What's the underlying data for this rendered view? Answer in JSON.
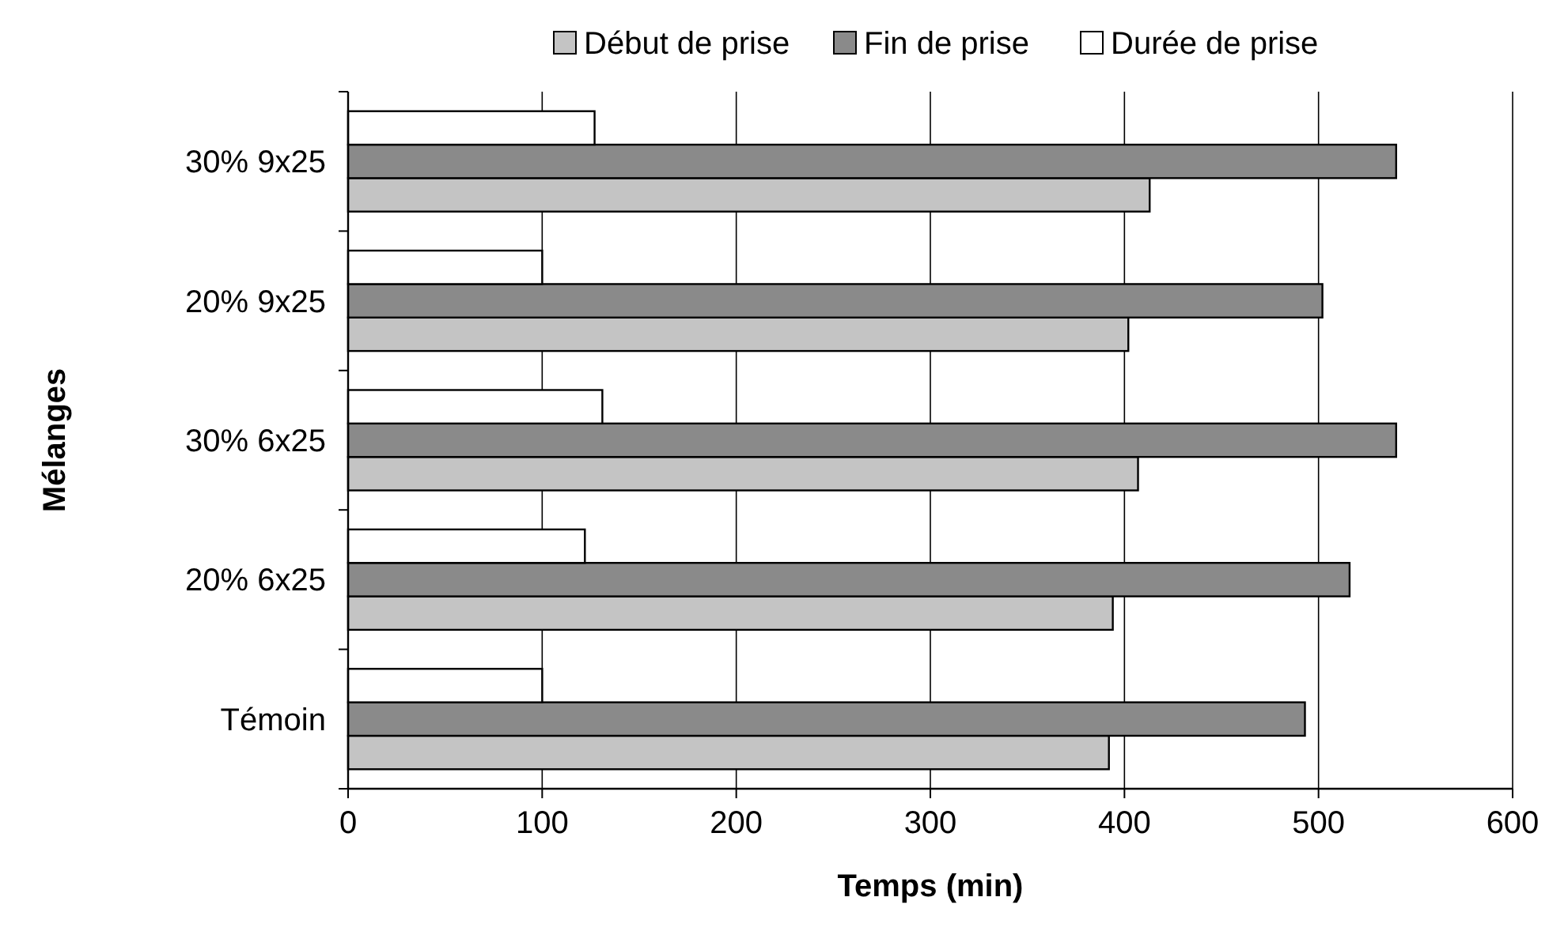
{
  "chart_data": {
    "type": "bar",
    "orientation": "horizontal",
    "xlabel": "Temps (min)",
    "ylabel": "Mélanges",
    "categories": [
      "30% 9x25",
      "20% 9x25",
      "30% 6x25",
      "20% 6x25",
      "Témoin"
    ],
    "series": [
      {
        "name": "Début de prise",
        "color": "#c4c4c4",
        "values": [
          413,
          402,
          407,
          394,
          392
        ]
      },
      {
        "name": "Fin de prise",
        "color": "#8a8a8a",
        "values": [
          540,
          502,
          540,
          516,
          493
        ]
      },
      {
        "name": "Durée de prise",
        "color": "#ffffff",
        "values": [
          127,
          100,
          131,
          122,
          100
        ]
      }
    ],
    "xlim": [
      0,
      600
    ],
    "xticks": [
      0,
      100,
      200,
      300,
      400,
      500,
      600
    ],
    "grid": "x",
    "legend": "top"
  }
}
